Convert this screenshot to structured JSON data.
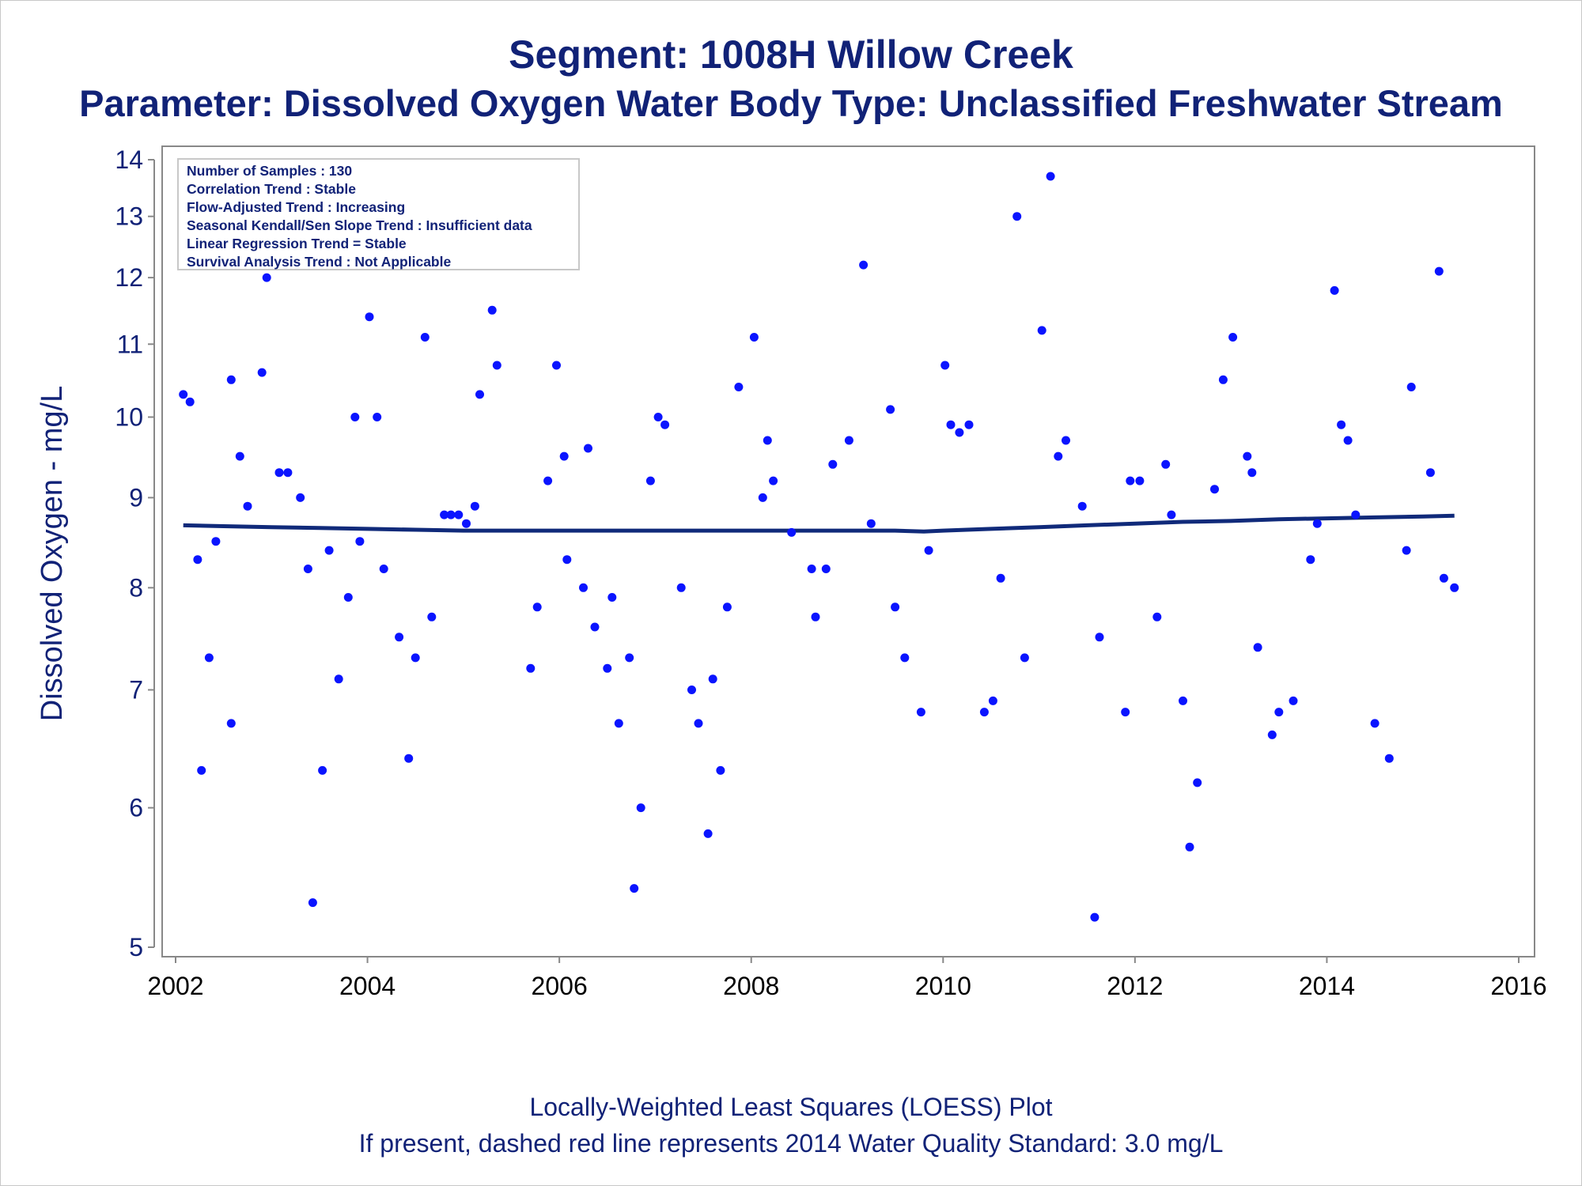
{
  "chart_data": {
    "type": "scatter",
    "title": "Segment: 1008H  Willow Creek",
    "subtitle": "Parameter: Dissolved Oxygen   Water Body Type: Unclassified Freshwater Stream",
    "xlabel": "",
    "ylabel": "Dissolved Oxygen - mg/L",
    "xlim": [
      2002,
      2016
    ],
    "ylim": [
      5,
      14
    ],
    "yscale": "log",
    "xticks": [
      "2002",
      "2004",
      "2006",
      "2008",
      "2010",
      "2012",
      "2014",
      "2016"
    ],
    "yticks": [
      "5",
      "6",
      "7",
      "8",
      "9",
      "10",
      "11",
      "12",
      "13",
      "14"
    ],
    "ytick_values": [
      5,
      6,
      7,
      8,
      9,
      10,
      11,
      12,
      13,
      14
    ],
    "grid": false,
    "legend": "none",
    "colors": {
      "points": "#0a14ff",
      "loess": "#102a7a",
      "text": "#112277",
      "axis": "#888888"
    },
    "info_box": {
      "placement": "top-left",
      "lines": [
        "Number of Samples : 130",
        "Correlation Trend : Stable",
        "Flow-Adjusted Trend : Increasing",
        "Seasonal Kendall/Sen Slope Trend : Insufficient data",
        "Linear Regression Trend = Stable",
        "Survival Analysis Trend : Not Applicable"
      ]
    },
    "points": [
      [
        2002.08,
        10.3
      ],
      [
        2002.15,
        10.2
      ],
      [
        2002.23,
        8.3
      ],
      [
        2002.27,
        6.3
      ],
      [
        2002.35,
        7.3
      ],
      [
        2002.42,
        8.5
      ],
      [
        2002.58,
        10.5
      ],
      [
        2002.58,
        6.7
      ],
      [
        2002.67,
        9.5
      ],
      [
        2002.75,
        8.9
      ],
      [
        2002.9,
        10.6
      ],
      [
        2002.95,
        12.0
      ],
      [
        2003.08,
        9.3
      ],
      [
        2003.17,
        9.3
      ],
      [
        2003.3,
        9.0
      ],
      [
        2003.38,
        8.2
      ],
      [
        2003.43,
        5.3
      ],
      [
        2003.53,
        6.3
      ],
      [
        2003.6,
        8.4
      ],
      [
        2003.7,
        7.1
      ],
      [
        2003.8,
        7.9
      ],
      [
        2003.87,
        10.0
      ],
      [
        2003.92,
        8.5
      ],
      [
        2004.02,
        11.4
      ],
      [
        2004.1,
        10.0
      ],
      [
        2004.17,
        8.2
      ],
      [
        2004.33,
        7.5
      ],
      [
        2004.43,
        6.4
      ],
      [
        2004.5,
        7.3
      ],
      [
        2004.6,
        11.1
      ],
      [
        2004.67,
        7.7
      ],
      [
        2004.8,
        8.8
      ],
      [
        2004.87,
        8.8
      ],
      [
        2004.95,
        8.8
      ],
      [
        2005.03,
        8.7
      ],
      [
        2005.12,
        8.9
      ],
      [
        2005.17,
        10.3
      ],
      [
        2005.3,
        11.5
      ],
      [
        2005.35,
        10.7
      ],
      [
        2005.7,
        7.2
      ],
      [
        2005.77,
        7.8
      ],
      [
        2005.88,
        9.2
      ],
      [
        2005.97,
        10.7
      ],
      [
        2006.05,
        9.5
      ],
      [
        2006.08,
        8.3
      ],
      [
        2006.25,
        8.0
      ],
      [
        2006.3,
        9.6
      ],
      [
        2006.37,
        7.6
      ],
      [
        2006.5,
        7.2
      ],
      [
        2006.55,
        7.9
      ],
      [
        2006.62,
        6.7
      ],
      [
        2006.73,
        7.3
      ],
      [
        2006.78,
        5.4
      ],
      [
        2006.85,
        6.0
      ],
      [
        2006.95,
        9.2
      ],
      [
        2007.03,
        10.0
      ],
      [
        2007.1,
        9.9
      ],
      [
        2007.27,
        8.0
      ],
      [
        2007.38,
        7.0
      ],
      [
        2007.45,
        6.7
      ],
      [
        2007.55,
        5.8
      ],
      [
        2007.6,
        7.1
      ],
      [
        2007.68,
        6.3
      ],
      [
        2007.75,
        7.8
      ],
      [
        2007.87,
        10.4
      ],
      [
        2008.03,
        11.1
      ],
      [
        2008.12,
        9.0
      ],
      [
        2008.17,
        9.7
      ],
      [
        2008.23,
        9.2
      ],
      [
        2008.42,
        8.6
      ],
      [
        2008.63,
        8.2
      ],
      [
        2008.67,
        7.7
      ],
      [
        2008.78,
        8.2
      ],
      [
        2008.85,
        9.4
      ],
      [
        2009.02,
        9.7
      ],
      [
        2009.17,
        12.2
      ],
      [
        2009.25,
        8.7
      ],
      [
        2009.45,
        10.1
      ],
      [
        2009.5,
        7.8
      ],
      [
        2009.6,
        7.3
      ],
      [
        2009.77,
        6.8
      ],
      [
        2009.85,
        8.4
      ],
      [
        2010.02,
        10.7
      ],
      [
        2010.08,
        9.9
      ],
      [
        2010.17,
        9.8
      ],
      [
        2010.27,
        9.9
      ],
      [
        2010.43,
        6.8
      ],
      [
        2010.52,
        6.9
      ],
      [
        2010.6,
        8.1
      ],
      [
        2010.77,
        13.0
      ],
      [
        2010.85,
        7.3
      ],
      [
        2011.03,
        11.2
      ],
      [
        2011.12,
        13.7
      ],
      [
        2011.2,
        9.5
      ],
      [
        2011.28,
        9.7
      ],
      [
        2011.45,
        8.9
      ],
      [
        2011.58,
        5.2
      ],
      [
        2011.63,
        7.5
      ],
      [
        2011.9,
        6.8
      ],
      [
        2011.95,
        9.2
      ],
      [
        2012.05,
        9.2
      ],
      [
        2012.23,
        7.7
      ],
      [
        2012.32,
        9.4
      ],
      [
        2012.38,
        8.8
      ],
      [
        2012.5,
        6.9
      ],
      [
        2012.57,
        5.7
      ],
      [
        2012.65,
        6.2
      ],
      [
        2012.83,
        9.1
      ],
      [
        2012.92,
        10.5
      ],
      [
        2013.02,
        11.1
      ],
      [
        2013.17,
        9.5
      ],
      [
        2013.22,
        9.3
      ],
      [
        2013.28,
        7.4
      ],
      [
        2013.43,
        6.6
      ],
      [
        2013.5,
        6.8
      ],
      [
        2013.65,
        6.9
      ],
      [
        2013.83,
        8.3
      ],
      [
        2013.9,
        8.7
      ],
      [
        2014.08,
        11.8
      ],
      [
        2014.15,
        9.9
      ],
      [
        2014.22,
        9.7
      ],
      [
        2014.3,
        8.8
      ],
      [
        2014.5,
        6.7
      ],
      [
        2014.65,
        6.4
      ],
      [
        2014.83,
        8.4
      ],
      [
        2014.88,
        10.4
      ],
      [
        2015.08,
        9.3
      ],
      [
        2015.17,
        12.1
      ],
      [
        2015.22,
        8.1
      ],
      [
        2015.33,
        8.0
      ]
    ],
    "loess": [
      [
        2002.08,
        8.68
      ],
      [
        2002.5,
        8.67
      ],
      [
        2003.0,
        8.66
      ],
      [
        2003.5,
        8.65
      ],
      [
        2004.0,
        8.64
      ],
      [
        2004.5,
        8.63
      ],
      [
        2005.0,
        8.62
      ],
      [
        2006.0,
        8.62
      ],
      [
        2007.0,
        8.62
      ],
      [
        2008.0,
        8.62
      ],
      [
        2009.0,
        8.62
      ],
      [
        2009.5,
        8.62
      ],
      [
        2009.8,
        8.61
      ],
      [
        2010.0,
        8.62
      ],
      [
        2010.5,
        8.64
      ],
      [
        2011.0,
        8.66
      ],
      [
        2011.5,
        8.68
      ],
      [
        2012.0,
        8.7
      ],
      [
        2012.5,
        8.72
      ],
      [
        2013.0,
        8.73
      ],
      [
        2013.5,
        8.75
      ],
      [
        2014.0,
        8.76
      ],
      [
        2014.5,
        8.77
      ],
      [
        2015.0,
        8.78
      ],
      [
        2015.33,
        8.79
      ]
    ]
  },
  "footnotes": {
    "line1": "Locally-Weighted Least Squares (LOESS) Plot",
    "line2": "If present, dashed red line represents 2014 Water Quality Standard: 3.0 mg/L"
  }
}
